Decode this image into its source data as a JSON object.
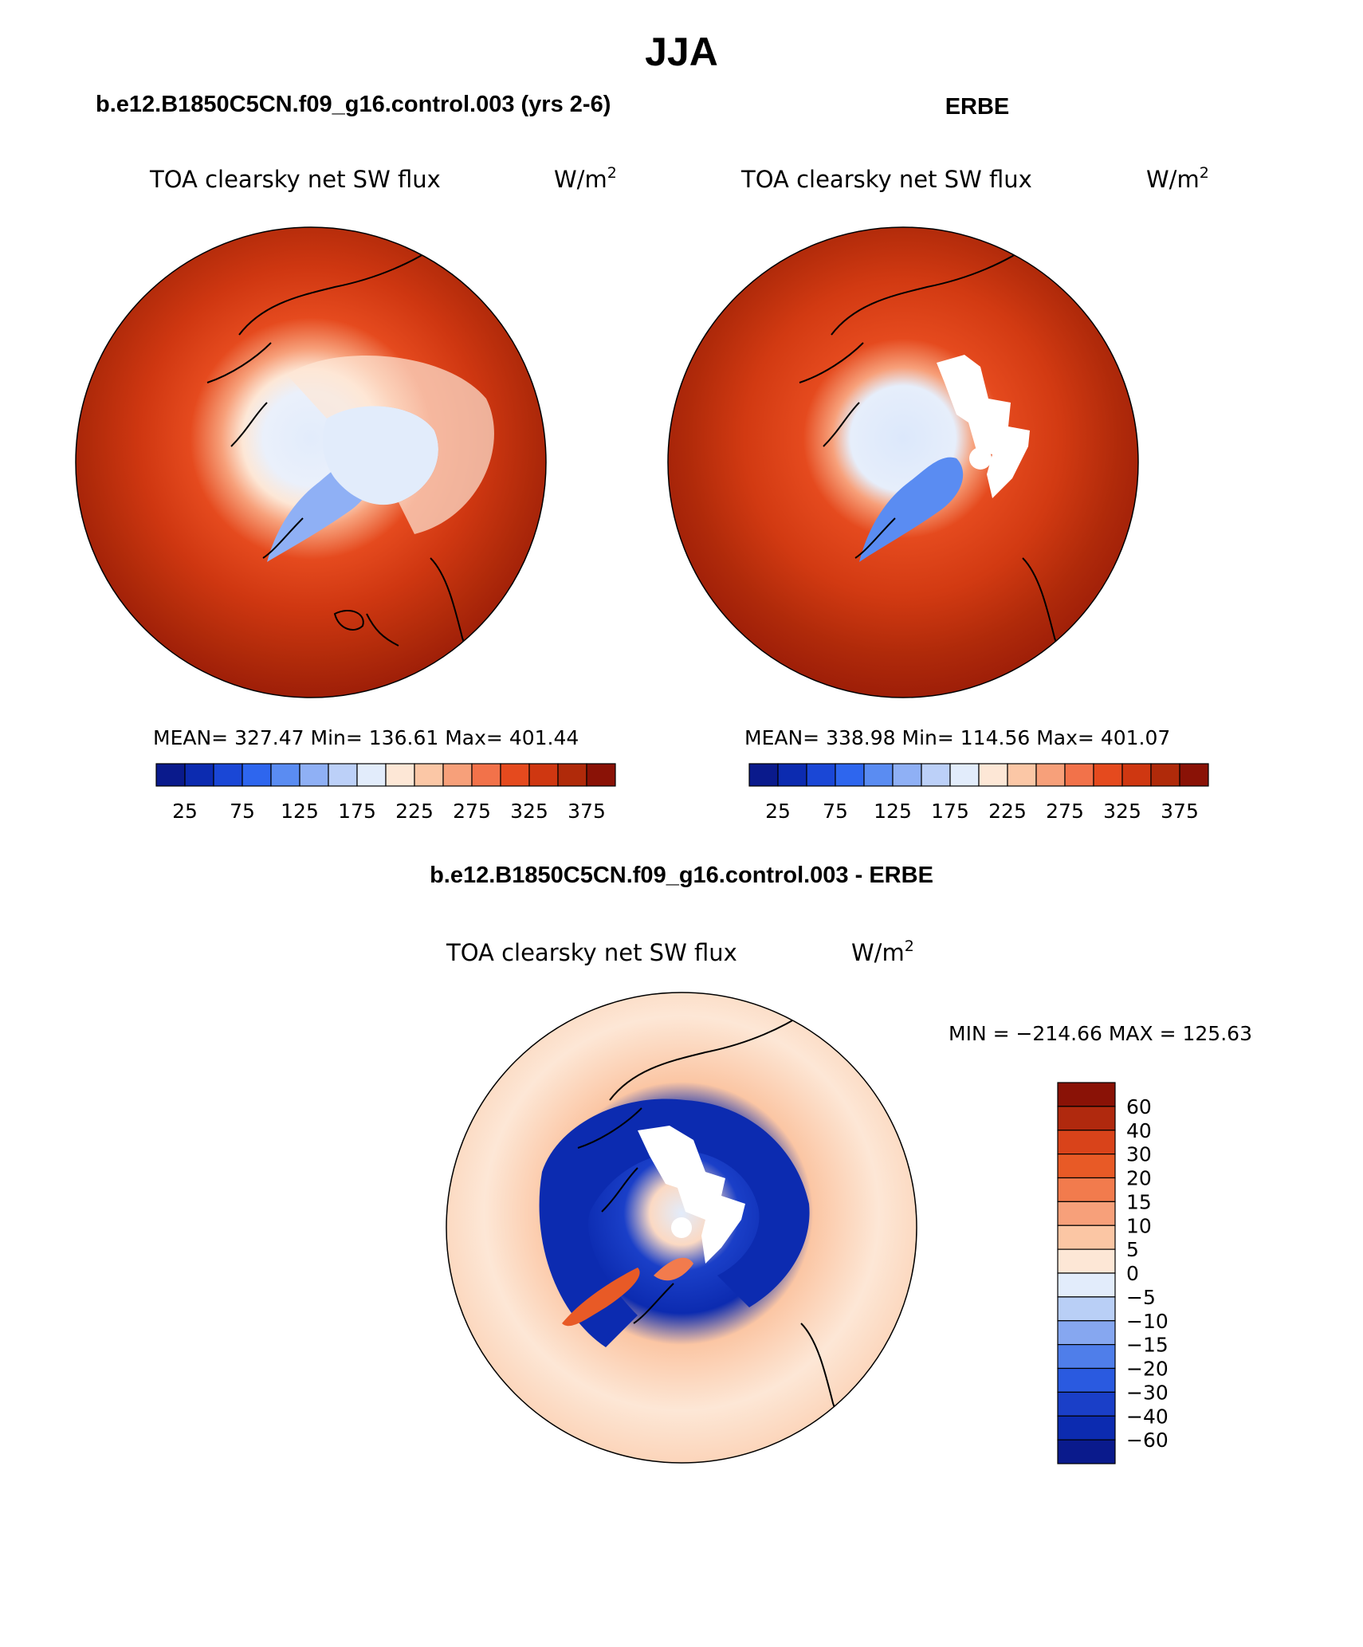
{
  "page": {
    "season": "JJA",
    "model_title": "b.e12.B1850C5CN.f09_g16.control.003 (yrs 2-6)",
    "obs_title": "ERBE",
    "diff_title": "b.e12.B1850C5CN.f09_g16.control.003 - ERBE"
  },
  "panels": {
    "model": {
      "variable": "TOA clearsky net SW flux",
      "units_base": "W/m",
      "units_exp": "2",
      "stats": {
        "mean_label": "MEAN=",
        "mean": "327.47",
        "min_label": "Min=",
        "min": "136.61",
        "max_label": "Max=",
        "max": "401.44"
      }
    },
    "obs": {
      "variable": "TOA clearsky net SW flux",
      "units_base": "W/m",
      "units_exp": "2",
      "stats": {
        "mean_label": "MEAN=",
        "mean": "338.98",
        "min_label": "Min=",
        "min": "114.56",
        "max_label": "Max=",
        "max": "401.07"
      }
    },
    "diff": {
      "variable": "TOA clearsky net SW flux",
      "units_base": "W/m",
      "units_exp": "2",
      "minmax": "MIN = −214.66 MAX = 125.63"
    }
  },
  "colorbars": {
    "abs": {
      "colors": [
        "#0a1a8c",
        "#0c2bb0",
        "#1a47d6",
        "#2e66ee",
        "#5a8cf2",
        "#8fb0f5",
        "#bcd0f8",
        "#e2ecfb",
        "#fde7d6",
        "#fbc7a6",
        "#f7a07a",
        "#f2724a",
        "#e54a1e",
        "#cf3711",
        "#b02a0a",
        "#8a1206"
      ],
      "tick_labels": [
        "25",
        "75",
        "125",
        "175",
        "225",
        "275",
        "325",
        "375"
      ]
    },
    "diff": {
      "colors": [
        "#0a1a8c",
        "#0c2bb0",
        "#1a3fc8",
        "#2a5ae0",
        "#4f7eea",
        "#86a7f0",
        "#b9cff6",
        "#e2ecfb",
        "#fde7d6",
        "#fbc6a4",
        "#f7a07a",
        "#f27b4d",
        "#e85a26",
        "#d9431a",
        "#b0290e",
        "#8a1206"
      ],
      "tick_labels": [
        "60",
        "40",
        "30",
        "20",
        "15",
        "10",
        "5",
        "0",
        "−5",
        "−10",
        "−15",
        "−20",
        "−30",
        "−40",
        "−60"
      ]
    }
  }
}
